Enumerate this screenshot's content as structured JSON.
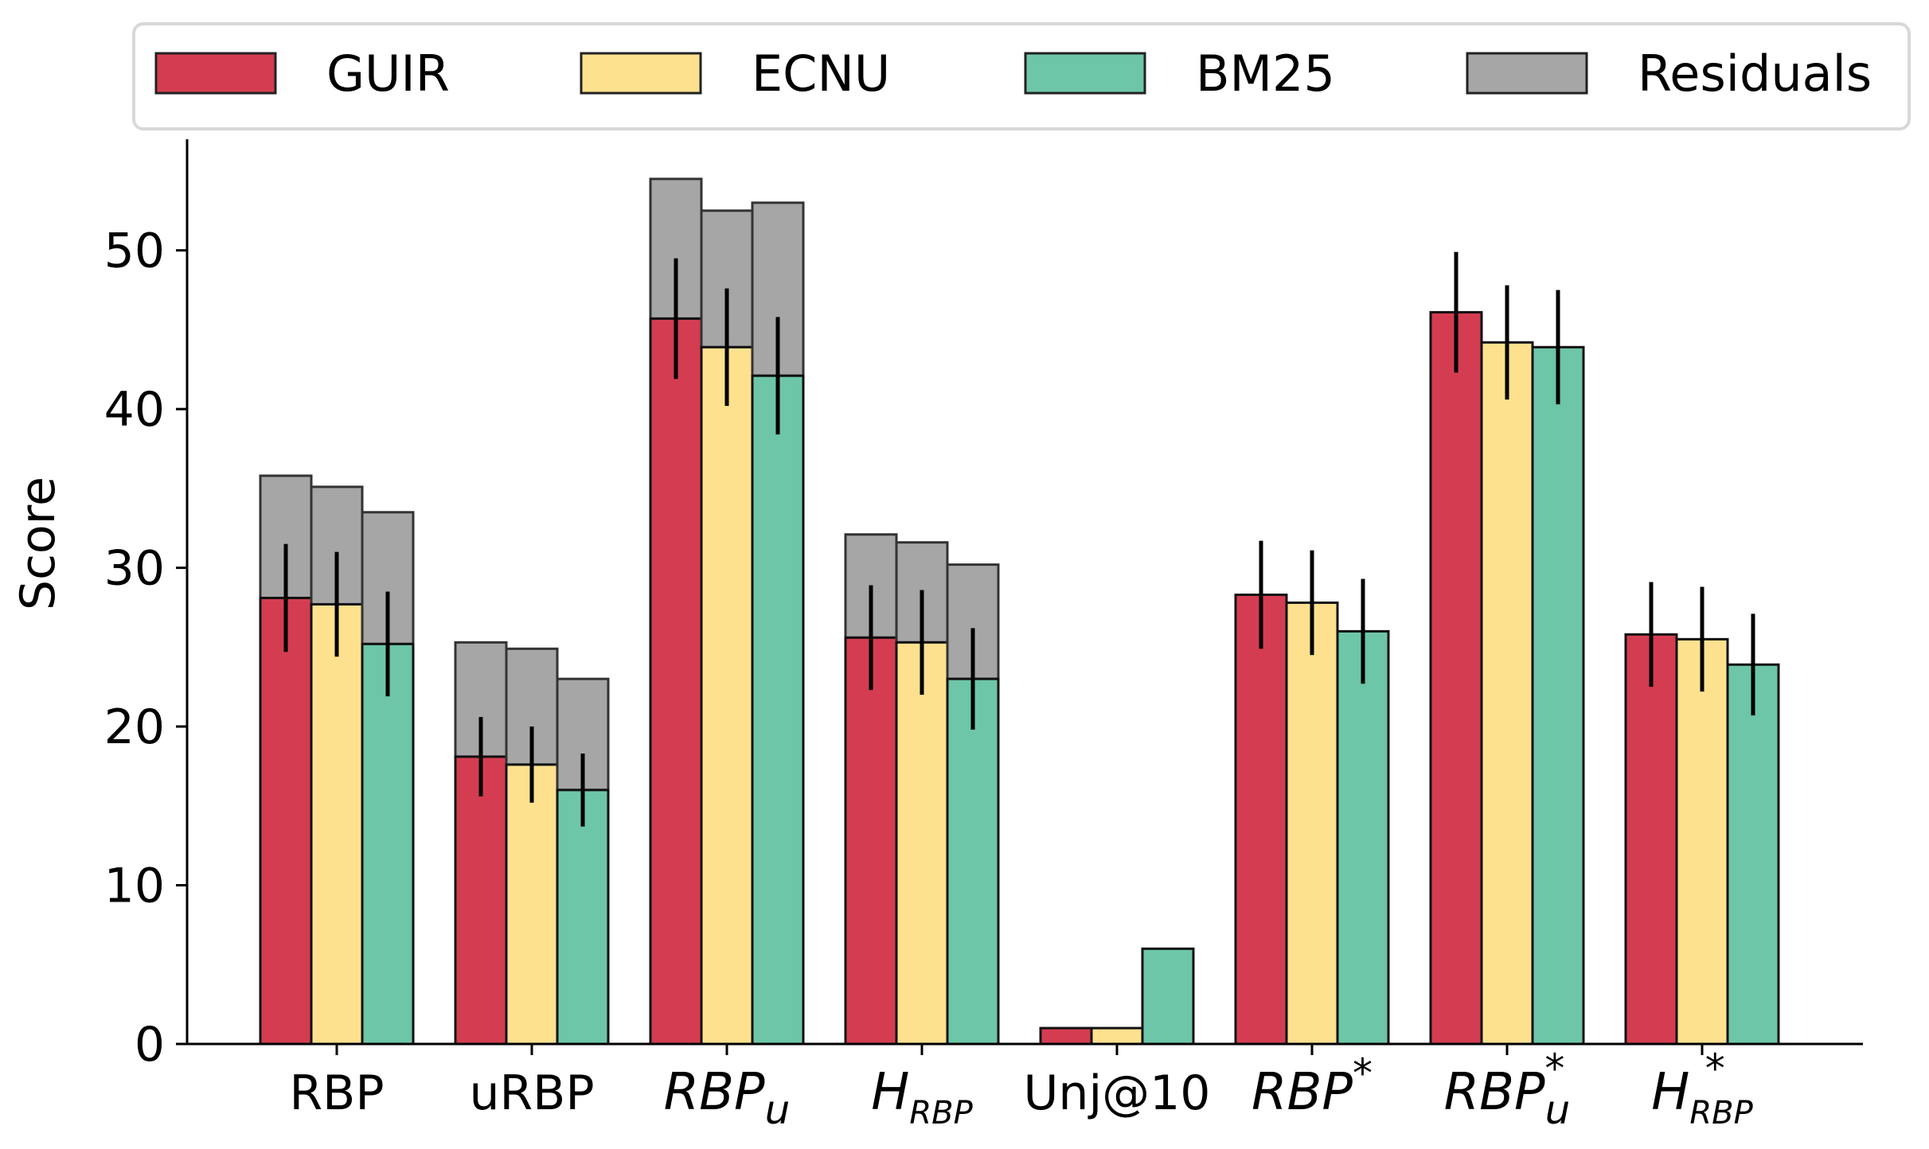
{
  "chart_data": {
    "type": "bar",
    "ylabel": "Score",
    "ylim": [
      0,
      57
    ],
    "yticks": [
      "0",
      "10",
      "20",
      "30",
      "40",
      "50"
    ],
    "categories": [
      {
        "main": "RBP",
        "italic": false
      },
      {
        "main": "uRBP",
        "italic": false
      },
      {
        "main": "RBP",
        "sub": "u",
        "italic": true
      },
      {
        "main": "H",
        "sub": "RBP",
        "italic": true
      },
      {
        "main": "Unj@10",
        "italic": false
      },
      {
        "main": "RBP",
        "sup": "*",
        "italic": true
      },
      {
        "main": "RBP",
        "sub": "u",
        "sup": "*",
        "italic": true
      },
      {
        "main": "H",
        "sub": "RBP",
        "sup": "*",
        "italic": true
      }
    ],
    "series": [
      {
        "name": "GUIR",
        "color": "#d43d51",
        "values": [
          28.1,
          18.1,
          45.7,
          25.6,
          1.0,
          28.3,
          46.1,
          25.8
        ],
        "errors": [
          3.4,
          2.5,
          3.8,
          3.3,
          null,
          3.4,
          3.8,
          3.3
        ],
        "residuals": [
          7.7,
          7.2,
          8.8,
          6.5,
          0,
          0,
          0,
          0
        ]
      },
      {
        "name": "ECNU",
        "color": "#fde18f",
        "values": [
          27.7,
          17.6,
          43.9,
          25.3,
          1.0,
          27.8,
          44.2,
          25.5
        ],
        "errors": [
          3.3,
          2.4,
          3.7,
          3.3,
          null,
          3.3,
          3.6,
          3.3
        ],
        "residuals": [
          7.4,
          7.3,
          8.6,
          6.3,
          0,
          0,
          0,
          0
        ]
      },
      {
        "name": "BM25",
        "color": "#6dc6a8",
        "values": [
          25.2,
          16.0,
          42.1,
          23.0,
          6.0,
          26.0,
          43.9,
          23.9
        ],
        "errors": [
          3.3,
          2.3,
          3.7,
          3.2,
          null,
          3.3,
          3.6,
          3.2
        ],
        "residuals": [
          8.3,
          7.0,
          10.9,
          7.2,
          0,
          0,
          0,
          0
        ]
      }
    ],
    "residual_series": {
      "name": "Residuals",
      "color": "#a6a6a6"
    },
    "legend": {
      "placement": "top",
      "orientation": "horizontal"
    }
  }
}
